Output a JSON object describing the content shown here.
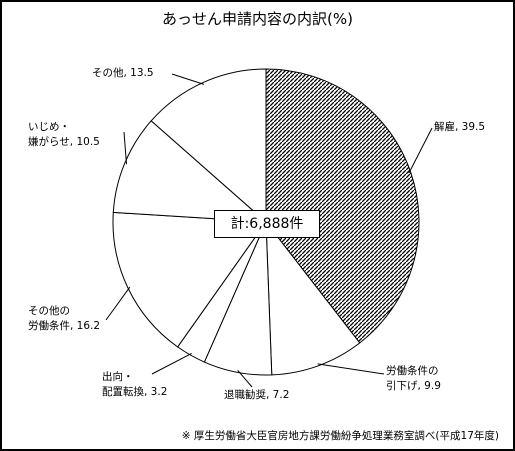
{
  "chart_data": {
    "type": "pie",
    "title": "あっせん申請内容の内訳(%)",
    "total_label": "計:6,888件",
    "hatched_color": "#000000",
    "slices": [
      {
        "name": "解雇",
        "value": 39.5,
        "label": "解雇, 39.5",
        "hatched": true
      },
      {
        "name": "労働条件の引下げ",
        "value": 9.9,
        "label_lines": [
          "労働条件の",
          "引下げ, 9.9"
        ]
      },
      {
        "name": "退職勧奨",
        "value": 7.2,
        "label": "退職勧奨, 7.2"
      },
      {
        "name": "出向・配置転換",
        "value": 3.2,
        "label_lines": [
          "出向・",
          "配置転換, 3.2"
        ]
      },
      {
        "name": "その他の労働条件",
        "value": 16.2,
        "label_lines": [
          "その他の",
          "労働条件, 16.2"
        ]
      },
      {
        "name": "いじめ・嫌がらせ",
        "value": 10.5,
        "label_lines": [
          "いじめ・",
          "嫌がらせ, 10.5"
        ]
      },
      {
        "name": "その他",
        "value": 13.5,
        "label": "その他, 13.5"
      }
    ]
  },
  "footnote": "※ 厚生労働省大臣官房地方課労働紛争処理業務室調べ(平成17年度)"
}
